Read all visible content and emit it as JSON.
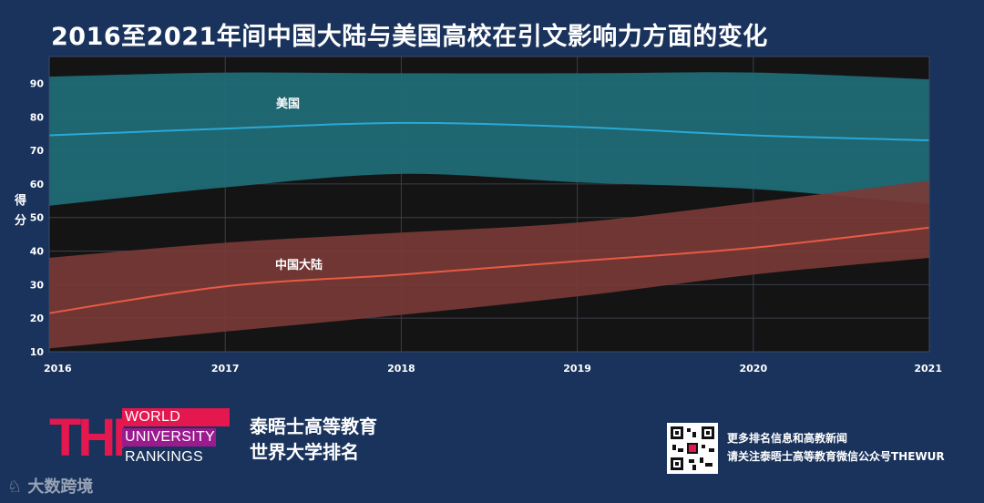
{
  "page": {
    "title": "2016至2021年间中国大陆与美国高校在引文影响力方面的变化",
    "ylabel_chars": [
      "得",
      "分"
    ]
  },
  "chart_data": {
    "type": "area",
    "title": "2016至2021年间中国大陆与美国高校在引文影响力方面的变化",
    "xlabel": "",
    "ylabel": "得分",
    "x": [
      2016,
      2017,
      2018,
      2019,
      2020,
      2021
    ],
    "xlim": [
      2016,
      2021
    ],
    "ylim": [
      10,
      98
    ],
    "yticks": [
      10,
      20,
      30,
      40,
      50,
      60,
      70,
      80,
      90
    ],
    "grid": true,
    "series": [
      {
        "name": "美国",
        "label": "美国",
        "color": "#2aa9d6",
        "band_color": "#1f6f7a",
        "median": [
          74.5,
          76.5,
          78.2,
          77,
          74.5,
          73
        ],
        "upper": [
          92,
          93.2,
          93,
          93,
          93.2,
          91.2
        ],
        "lower": [
          53.5,
          59,
          63,
          60.5,
          58.5,
          54
        ]
      },
      {
        "name": "中国大陆",
        "label": "中国大陆",
        "color": "#e85a45",
        "band_color": "#7a3a36",
        "median": [
          21.5,
          29.5,
          33,
          37,
          41,
          47
        ],
        "upper": [
          38,
          42.5,
          45.5,
          48.5,
          54.5,
          61
        ],
        "lower": [
          11,
          16,
          21,
          26.5,
          33,
          38
        ]
      }
    ]
  },
  "footer": {
    "logo_letters": "THE",
    "logo_words": [
      "WORLD",
      "UNIVERSITY",
      "RANKINGS"
    ],
    "org_line1": "泰晤士高等教育",
    "org_line2": "世界大学排名",
    "qr_line1": "更多排名信息和高教新闻",
    "qr_line2": "请关注泰晤士高等教育微信公众号THEWUR",
    "watermark": "大数跨境"
  }
}
